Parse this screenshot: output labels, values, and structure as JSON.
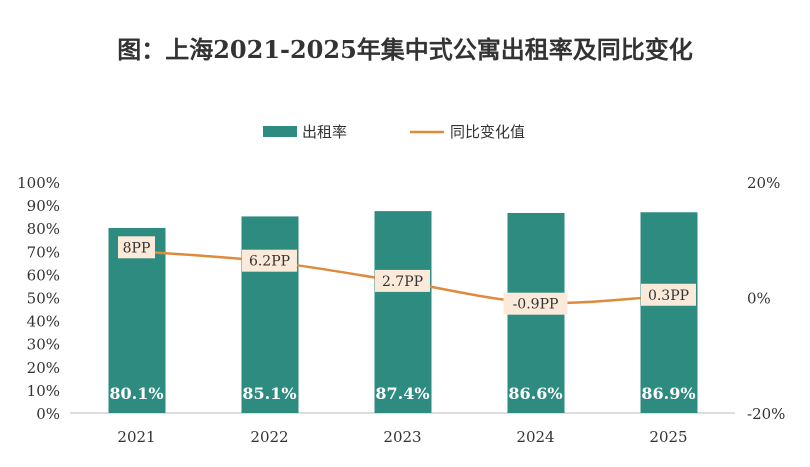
{
  "chart_data": {
    "type": "bar+line",
    "title": "图：上海2021-2025年集中式公寓出租率及同比变化",
    "categories": [
      "2021",
      "2022",
      "2023",
      "2024",
      "2025"
    ],
    "series": [
      {
        "name": "出租率",
        "type": "bar",
        "axis": "left",
        "values": [
          80.1,
          85.1,
          87.4,
          86.6,
          86.9
        ],
        "labels": [
          "80.1%",
          "85.1%",
          "87.4%",
          "86.6%",
          "86.9%"
        ],
        "color": "#2e8b80"
      },
      {
        "name": "同比变化值",
        "type": "line",
        "axis": "right",
        "values": [
          8,
          6.2,
          2.7,
          -0.9,
          0.3
        ],
        "labels": [
          "8PP",
          "6.2PP",
          "2.7PP",
          "-0.9PP",
          "0.3PP"
        ],
        "color": "#e08a3c"
      }
    ],
    "left_axis": {
      "ylim": [
        0,
        100
      ],
      "ticks": [
        "0%",
        "10%",
        "20%",
        "30%",
        "40%",
        "50%",
        "60%",
        "70%",
        "80%",
        "90%",
        "100%"
      ]
    },
    "right_axis": {
      "ylim": [
        -20,
        20
      ],
      "ticks": [
        "-20%",
        "0%",
        "20%"
      ]
    },
    "legend": "top",
    "grid": false
  }
}
